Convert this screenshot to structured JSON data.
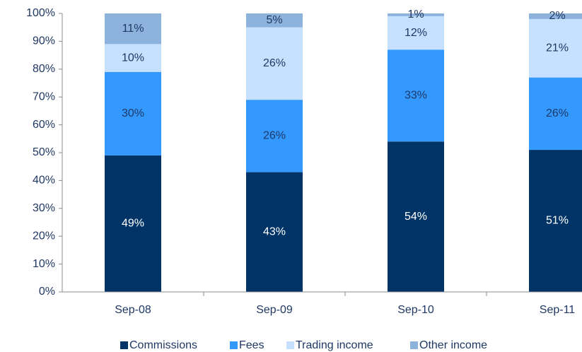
{
  "chart_data": {
    "type": "stacked_bar",
    "categories": [
      "Sep-08",
      "Sep-09",
      "Sep-10",
      "Sep-11"
    ],
    "series": [
      {
        "name": "Commissions",
        "color": "#003366",
        "values": [
          49,
          43,
          54,
          51
        ],
        "value_labels": [
          "49%",
          "43%",
          "54%",
          "51%"
        ]
      },
      {
        "name": "Fees",
        "color": "#3399ff",
        "values": [
          30,
          26,
          33,
          26
        ],
        "value_labels": [
          "30%",
          "26%",
          "33%",
          "26%"
        ]
      },
      {
        "name": "Trading income",
        "color": "#c6e0ff",
        "values": [
          10,
          26,
          12,
          21
        ],
        "value_labels": [
          "10%",
          "26%",
          "12%",
          "21%"
        ]
      },
      {
        "name": "Other income",
        "color": "#8db3dc",
        "values": [
          11,
          5,
          1,
          2
        ],
        "value_labels": [
          "11%",
          "5%",
          "1%",
          "2%"
        ]
      }
    ],
    "ylim": [
      0,
      100
    ],
    "yticks": [
      {
        "value": 0,
        "label": "0%"
      },
      {
        "value": 10,
        "label": "10%"
      },
      {
        "value": 20,
        "label": "20%"
      },
      {
        "value": 30,
        "label": "30%"
      },
      {
        "value": 40,
        "label": "40%"
      },
      {
        "value": 50,
        "label": "50%"
      },
      {
        "value": 60,
        "label": "60%"
      },
      {
        "value": 70,
        "label": "70%"
      },
      {
        "value": 80,
        "label": "80%"
      },
      {
        "value": 90,
        "label": "90%"
      },
      {
        "value": 100,
        "label": "100%"
      }
    ],
    "grid": false,
    "legend": "bottom"
  }
}
